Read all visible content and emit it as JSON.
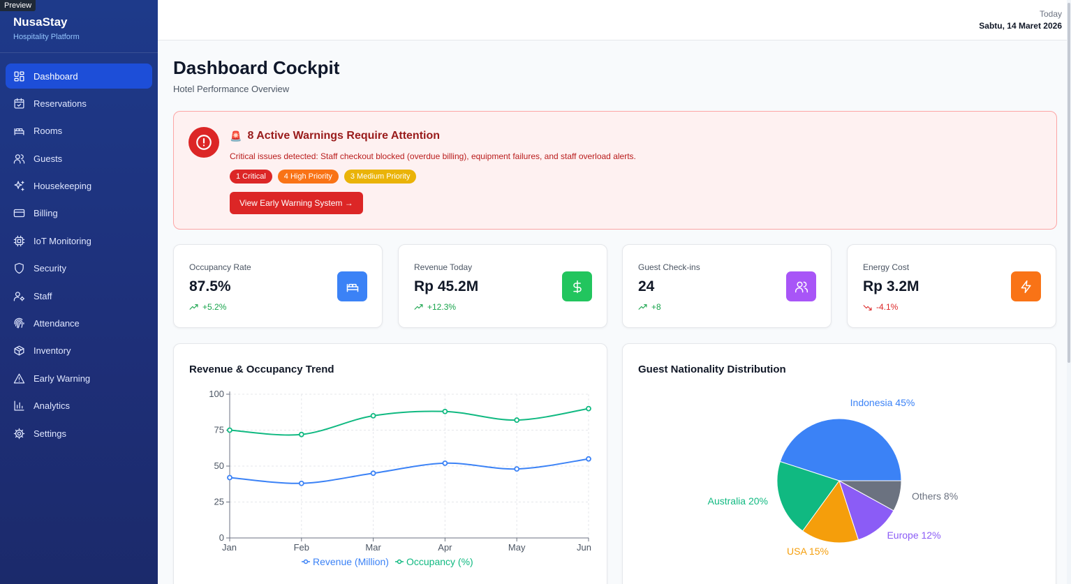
{
  "preview_label": "Preview",
  "brand": {
    "name": "NusaStay",
    "subtitle": "Hospitality Platform"
  },
  "nav": [
    {
      "label": "Dashboard",
      "icon": "dashboard-icon",
      "active": true
    },
    {
      "label": "Reservations",
      "icon": "calendar-icon"
    },
    {
      "label": "Rooms",
      "icon": "bed-icon"
    },
    {
      "label": "Guests",
      "icon": "users-icon"
    },
    {
      "label": "Housekeeping",
      "icon": "sparkles-icon"
    },
    {
      "label": "Billing",
      "icon": "credit-card-icon"
    },
    {
      "label": "IoT Monitoring",
      "icon": "cpu-icon"
    },
    {
      "label": "Security",
      "icon": "shield-icon"
    },
    {
      "label": "Staff",
      "icon": "user-cog-icon"
    },
    {
      "label": "Attendance",
      "icon": "fingerprint-icon"
    },
    {
      "label": "Inventory",
      "icon": "package-icon"
    },
    {
      "label": "Early Warning",
      "icon": "alert-triangle-icon"
    },
    {
      "label": "Analytics",
      "icon": "bar-chart-icon"
    },
    {
      "label": "Settings",
      "icon": "gear-icon"
    }
  ],
  "header": {
    "date_label": "Today",
    "date_value": "Sabtu, 14 Maret 2026"
  },
  "page": {
    "title": "Dashboard Cockpit",
    "subtitle": "Hotel Performance Overview"
  },
  "alert": {
    "emoji": "🚨",
    "title": "8 Active Warnings Require Attention",
    "description": "Critical issues detected: Staff checkout blocked (overdue billing), equipment failures, and staff overload alerts.",
    "badges": {
      "critical": "1 Critical",
      "high": "4 High Priority",
      "medium": "3 Medium Priority"
    },
    "button": "View Early Warning System →"
  },
  "kpis": [
    {
      "label": "Occupancy Rate",
      "value": "87.5%",
      "trend": "+5.2%",
      "trend_dir": "up",
      "icon": "bed-icon",
      "color": "#3b82f6"
    },
    {
      "label": "Revenue Today",
      "value": "Rp 45.2M",
      "trend": "+12.3%",
      "trend_dir": "up",
      "icon": "dollar-icon",
      "color": "#22c55e"
    },
    {
      "label": "Guest Check-ins",
      "value": "24",
      "trend": "+8",
      "trend_dir": "up",
      "icon": "users-icon",
      "color": "#a855f7"
    },
    {
      "label": "Energy Cost",
      "value": "Rp 3.2M",
      "trend": "-4.1%",
      "trend_dir": "down",
      "icon": "zap-icon",
      "color": "#f97316"
    }
  ],
  "colors": {
    "up": "#16a34a",
    "down": "#dc2626",
    "revenue": "#3b82f6",
    "occupancy": "#10b981"
  },
  "chart_data": [
    {
      "type": "line",
      "title": "Revenue & Occupancy Trend",
      "categories": [
        "Jan",
        "Feb",
        "Mar",
        "Apr",
        "May",
        "Jun"
      ],
      "series": [
        {
          "name": "Revenue (Million)",
          "values": [
            42,
            38,
            45,
            52,
            48,
            55
          ],
          "color": "#3b82f6"
        },
        {
          "name": "Occupancy (%)",
          "values": [
            75,
            72,
            85,
            88,
            82,
            90
          ],
          "color": "#10b981"
        }
      ],
      "y_ticks": [
        0,
        25,
        50,
        75,
        100
      ],
      "ylim": [
        0,
        100
      ],
      "grid": true,
      "legend": "bottom"
    },
    {
      "type": "pie",
      "title": "Guest Nationality Distribution",
      "slices": [
        {
          "label": "Indonesia",
          "value": 45,
          "color": "#3b82f6"
        },
        {
          "label": "Australia",
          "value": 20,
          "color": "#10b981"
        },
        {
          "label": "USA",
          "value": 15,
          "color": "#f59e0b"
        },
        {
          "label": "Europe",
          "value": 12,
          "color": "#8b5cf6"
        },
        {
          "label": "Others",
          "value": 8,
          "color": "#6b7280"
        }
      ]
    }
  ]
}
